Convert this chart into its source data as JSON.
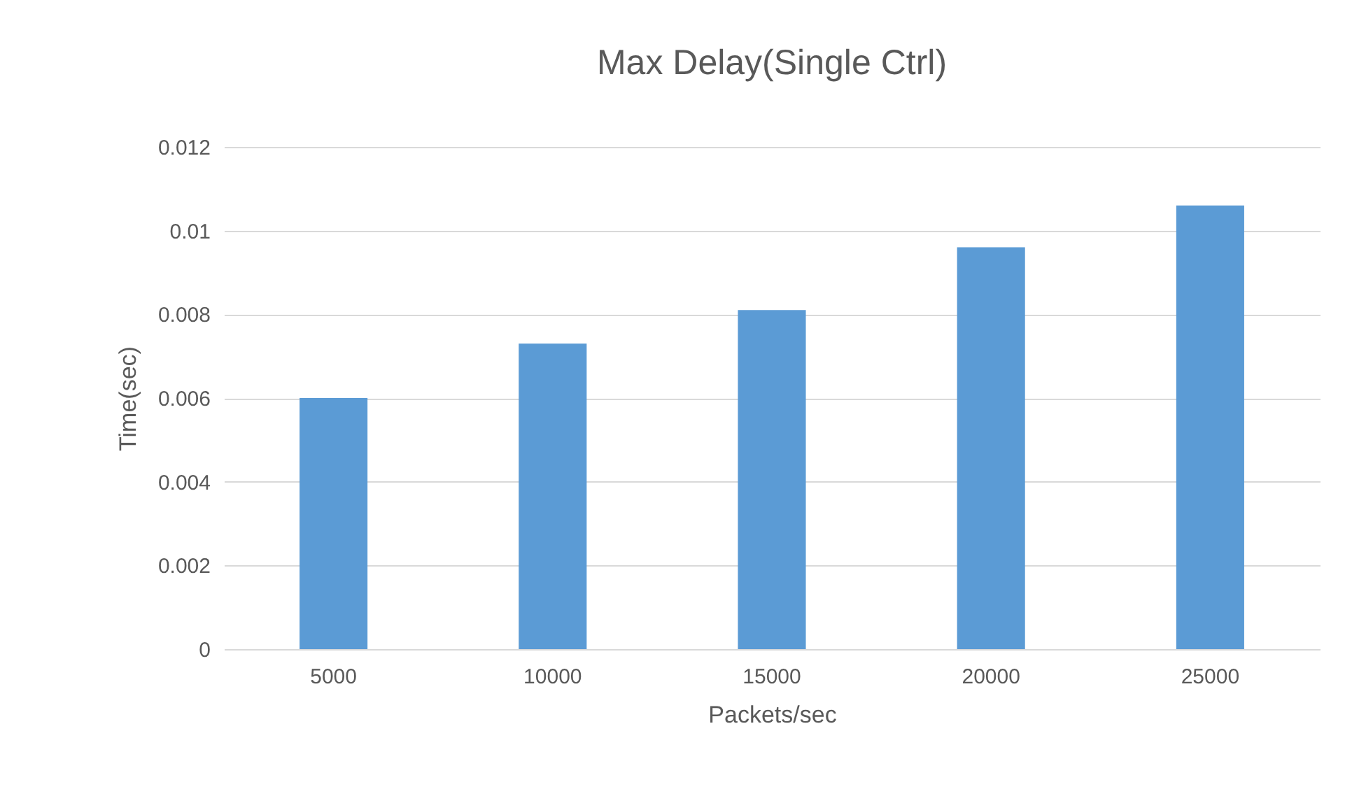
{
  "chart_data": {
    "type": "bar",
    "title": "Max Delay(Single Ctrl)",
    "xlabel": "Packets/sec",
    "ylabel": "Time(sec)",
    "categories": [
      "5000",
      "10000",
      "15000",
      "20000",
      "25000"
    ],
    "values": [
      0.006,
      0.0073,
      0.0081,
      0.0096,
      0.0106
    ],
    "color": "#5b9bd5",
    "ylim": [
      0,
      0.012
    ],
    "yticks": [
      0,
      0.002,
      0.004,
      0.006,
      0.008,
      0.01,
      0.012
    ],
    "grid": "y"
  }
}
